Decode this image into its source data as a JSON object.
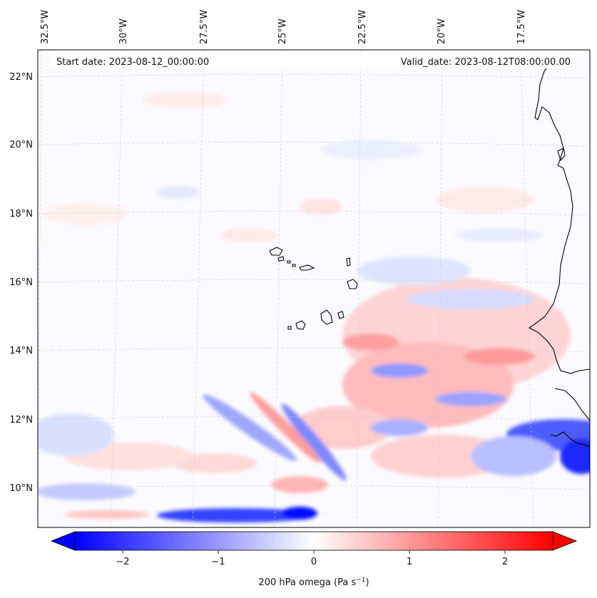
{
  "map": {
    "start_date": "Start date: 2023-08-12_00:00:00",
    "valid_date": "Valid_date: 2023-08-12T08:00:00.00",
    "lon_labels": [
      "32.5°W",
      "30°W",
      "27.5°W",
      "25°W",
      "22.5°W",
      "20°W",
      "17.5°W"
    ],
    "lat_labels": [
      "22°N",
      "20°N",
      "18°N",
      "16°N",
      "14°N",
      "12°N",
      "10°N"
    ],
    "field_colors": {
      "negative": "#0000ff",
      "zero": "#ffffff",
      "positive": "#ff0000"
    },
    "coastline_color": "#000000"
  },
  "colorbar": {
    "label": "200 hPa omega (Pa s",
    "label_sup": "−1",
    "label_end": ")",
    "ticks": [
      "−2",
      "−1",
      "0",
      "1",
      "2"
    ],
    "tick_values": [
      -2,
      -1,
      0,
      1,
      2
    ],
    "vmin": -2.5,
    "vmax": 2.5,
    "extend": "both"
  }
}
